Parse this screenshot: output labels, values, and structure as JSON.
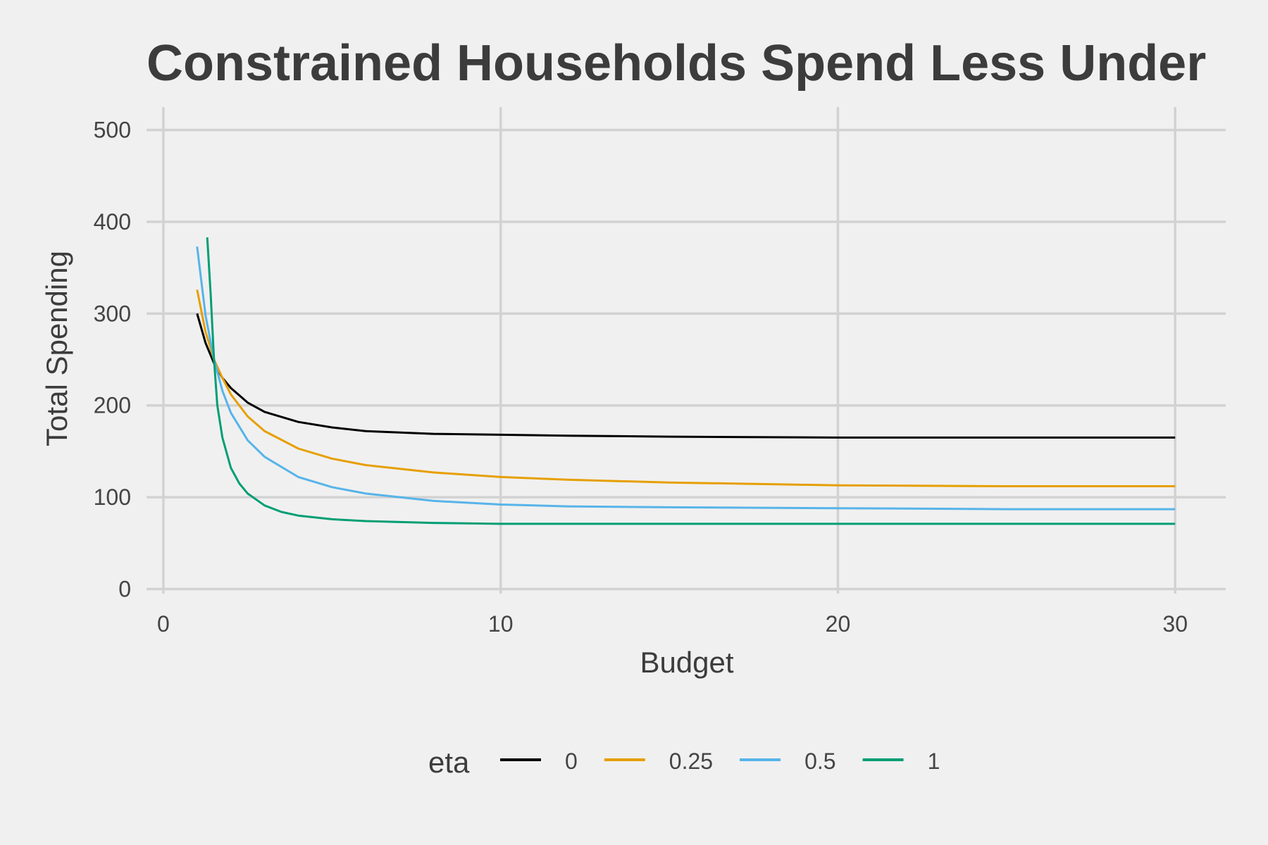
{
  "chart_data": {
    "type": "line",
    "title": "Constrained Households Spend Less Under",
    "xlabel": "Budget",
    "ylabel": "Total Spending",
    "xlim": [
      -0.5,
      31.5
    ],
    "ylim": [
      -5,
      525
    ],
    "x_ticks": [
      0,
      10,
      20,
      30
    ],
    "y_ticks": [
      0,
      100,
      200,
      300,
      400,
      500
    ],
    "grid": true,
    "legend": {
      "title": "eta",
      "position": "bottom"
    },
    "series": [
      {
        "name": "0",
        "color": "#000000",
        "x": [
          1,
          1.25,
          1.5,
          1.75,
          2,
          2.5,
          3,
          4,
          5,
          6,
          8,
          10,
          12,
          15,
          20,
          25,
          30
        ],
        "y": [
          300,
          268,
          246,
          230,
          219,
          203,
          193,
          182,
          176,
          172,
          169,
          168,
          167,
          166,
          165,
          165,
          165
        ]
      },
      {
        "name": "0.25",
        "color": "#E69F00",
        "x": [
          1,
          1.25,
          1.5,
          1.75,
          2,
          2.5,
          3,
          4,
          5,
          6,
          8,
          10,
          12,
          15,
          20,
          25,
          30
        ],
        "y": [
          326,
          280,
          250,
          230,
          212,
          188,
          172,
          153,
          142,
          135,
          127,
          122,
          119,
          116,
          113,
          112,
          112
        ]
      },
      {
        "name": "0.5",
        "color": "#56B4E9",
        "x": [
          1,
          1.25,
          1.5,
          1.75,
          2,
          2.5,
          3,
          4,
          5,
          6,
          8,
          10,
          12,
          15,
          20,
          25,
          30
        ],
        "y": [
          373,
          298,
          250,
          216,
          192,
          162,
          144,
          122,
          111,
          104,
          96,
          92,
          90,
          89,
          88,
          87,
          87
        ]
      },
      {
        "name": "1",
        "color": "#009E73",
        "x": [
          1.3,
          1.4,
          1.5,
          1.6,
          1.75,
          2,
          2.25,
          2.5,
          3,
          3.5,
          4,
          5,
          6,
          8,
          10,
          15,
          20,
          30
        ],
        "y": [
          383,
          322,
          250,
          200,
          165,
          132,
          115,
          104,
          91,
          84,
          80,
          76,
          74,
          72,
          71,
          71,
          71,
          71
        ]
      }
    ]
  }
}
